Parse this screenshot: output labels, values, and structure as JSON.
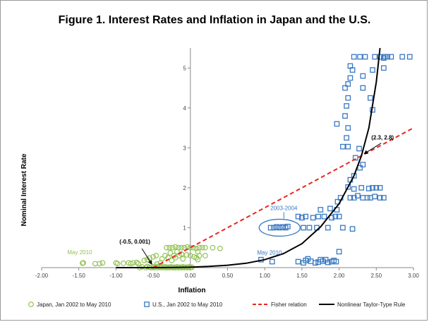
{
  "chart_data": {
    "type": "scatter",
    "title": "Figure 1.  Interest Rates and Inflation in Japan and the U.S.",
    "xlabel": "Inflation",
    "ylabel": "Nominal Interest Rate",
    "xlim": [
      -2.0,
      3.0
    ],
    "ylim": [
      0,
      5.5
    ],
    "x_ticks": [
      "-2.00",
      "-1.50",
      "-1.00",
      "-0.50",
      "0.00",
      "0.50",
      "1.00",
      "1.50",
      "2.00",
      "2.50",
      "3.00"
    ],
    "y_ticks": [
      "1",
      "2",
      "3",
      "4",
      "5"
    ],
    "grid": false,
    "legend_position": "bottom",
    "colors": {
      "japan": "#92c353",
      "us": "#3a78c2",
      "fisher": "#e8281e",
      "taylor": "#000000"
    },
    "series": [
      {
        "name": "Japan, Jan 2002 to May 2010",
        "marker": "circle",
        "points": [
          [
            -1.45,
            0.11
          ],
          [
            -1.44,
            0.12
          ],
          [
            -1.28,
            0.1
          ],
          [
            -1.22,
            0.1
          ],
          [
            -1.18,
            0.12
          ],
          [
            -1.0,
            0.12
          ],
          [
            -0.98,
            0.1
          ],
          [
            -0.9,
            0.11
          ],
          [
            -0.83,
            0.12
          ],
          [
            -0.8,
            0.1
          ],
          [
            -0.77,
            0.12
          ],
          [
            -0.72,
            0.13
          ],
          [
            -0.7,
            0.1
          ],
          [
            -0.68,
            0.0
          ],
          [
            -0.65,
            0.02
          ],
          [
            -0.6,
            0.0
          ],
          [
            -0.58,
            0.03
          ],
          [
            -0.55,
            0.01
          ],
          [
            -0.53,
            0.0
          ],
          [
            -0.5,
            0.02
          ],
          [
            -0.48,
            0.0
          ],
          [
            -0.46,
            0.03
          ],
          [
            -0.44,
            0.0
          ],
          [
            -0.42,
            0.02
          ],
          [
            -0.4,
            0.0
          ],
          [
            -0.38,
            0.02
          ],
          [
            -0.36,
            0.0
          ],
          [
            -0.34,
            0.02
          ],
          [
            -0.32,
            0.0
          ],
          [
            -0.3,
            0.01
          ],
          [
            -0.28,
            0.0
          ],
          [
            -0.26,
            0.02
          ],
          [
            -0.24,
            0.0
          ],
          [
            -0.22,
            0.01
          ],
          [
            -0.2,
            0.0
          ],
          [
            -0.18,
            0.02
          ],
          [
            -0.16,
            0.0
          ],
          [
            -0.14,
            0.01
          ],
          [
            -0.12,
            0.0
          ],
          [
            -0.1,
            0.02
          ],
          [
            -0.08,
            0.0
          ],
          [
            -0.06,
            0.01
          ],
          [
            -0.04,
            0.0
          ],
          [
            -0.02,
            0.02
          ],
          [
            0.0,
            0.0
          ],
          [
            0.02,
            0.01
          ],
          [
            -0.62,
            0.18
          ],
          [
            -0.58,
            0.2
          ],
          [
            -0.55,
            0.24
          ],
          [
            -0.5,
            0.27
          ],
          [
            -0.46,
            0.3
          ],
          [
            -0.45,
            0.09
          ],
          [
            -0.4,
            0.12
          ],
          [
            -0.38,
            0.22
          ],
          [
            -0.34,
            0.3
          ],
          [
            -0.3,
            0.25
          ],
          [
            -0.27,
            0.37
          ],
          [
            -0.25,
            0.18
          ],
          [
            -0.22,
            0.3
          ],
          [
            -0.2,
            0.25
          ],
          [
            -0.18,
            0.4
          ],
          [
            -0.15,
            0.3
          ],
          [
            -0.12,
            0.34
          ],
          [
            -0.1,
            0.22
          ],
          [
            -0.05,
            0.32
          ],
          [
            0.0,
            0.3
          ],
          [
            0.05,
            0.27
          ],
          [
            0.08,
            0.25
          ],
          [
            0.1,
            0.2
          ],
          [
            0.12,
            0.3
          ],
          [
            -0.32,
            0.5
          ],
          [
            -0.28,
            0.5
          ],
          [
            -0.24,
            0.5
          ],
          [
            -0.2,
            0.52
          ],
          [
            -0.16,
            0.5
          ],
          [
            -0.12,
            0.5
          ],
          [
            -0.08,
            0.5
          ],
          [
            -0.04,
            0.52
          ],
          [
            0.0,
            0.5
          ],
          [
            0.04,
            0.5
          ],
          [
            0.08,
            0.48
          ],
          [
            0.12,
            0.5
          ],
          [
            0.16,
            0.5
          ],
          [
            0.2,
            0.5
          ],
          [
            0.3,
            0.5
          ],
          [
            0.4,
            0.48
          ],
          [
            0.2,
            0.3
          ],
          [
            0.1,
            0.4
          ]
        ]
      },
      {
        "name": "U.S., Jan 2002 to May 2010",
        "marker": "square",
        "points": [
          [
            0.95,
            0.2
          ],
          [
            1.1,
            0.15
          ],
          [
            1.45,
            0.15
          ],
          [
            1.52,
            0.12
          ],
          [
            1.55,
            0.18
          ],
          [
            1.62,
            0.16
          ],
          [
            1.72,
            0.14
          ],
          [
            1.75,
            0.2
          ],
          [
            1.78,
            0.16
          ],
          [
            1.82,
            0.2
          ],
          [
            1.85,
            0.13
          ],
          [
            1.9,
            0.15
          ],
          [
            1.93,
            0.18
          ],
          [
            1.96,
            0.15
          ],
          [
            2.0,
            0.4
          ],
          [
            1.68,
            0.12
          ],
          [
            1.58,
            0.22
          ],
          [
            1.08,
            1.0
          ],
          [
            1.12,
            1.0
          ],
          [
            1.16,
            1.02
          ],
          [
            1.2,
            1.0
          ],
          [
            1.24,
            1.02
          ],
          [
            1.28,
            1.0
          ],
          [
            1.31,
            1.03
          ],
          [
            1.45,
            1.28
          ],
          [
            1.5,
            1.25
          ],
          [
            1.52,
            1.0
          ],
          [
            1.55,
            1.28
          ],
          [
            1.6,
            1.0
          ],
          [
            1.65,
            1.25
          ],
          [
            1.7,
            1.0
          ],
          [
            1.72,
            1.28
          ],
          [
            1.75,
            1.45
          ],
          [
            1.8,
            1.28
          ],
          [
            1.85,
            1.0
          ],
          [
            1.9,
            1.25
          ],
          [
            1.95,
            1.28
          ],
          [
            1.97,
            1.45
          ],
          [
            2.0,
            1.28
          ],
          [
            1.88,
            1.48
          ],
          [
            1.98,
            1.65
          ],
          [
            2.02,
            1.75
          ],
          [
            2.05,
            1.0
          ],
          [
            2.18,
            0.97
          ],
          [
            2.15,
            1.75
          ],
          [
            2.2,
            1.75
          ],
          [
            2.25,
            1.8
          ],
          [
            2.32,
            1.75
          ],
          [
            2.38,
            1.75
          ],
          [
            2.42,
            1.75
          ],
          [
            2.48,
            1.78
          ],
          [
            2.55,
            1.75
          ],
          [
            2.6,
            1.75
          ],
          [
            2.2,
            1.97
          ],
          [
            2.3,
            2.0
          ],
          [
            2.4,
            1.98
          ],
          [
            2.45,
            2.0
          ],
          [
            2.5,
            2.0
          ],
          [
            2.55,
            2.0
          ],
          [
            2.12,
            2.02
          ],
          [
            2.15,
            2.2
          ],
          [
            2.2,
            2.3
          ],
          [
            2.28,
            2.5
          ],
          [
            2.32,
            2.58
          ],
          [
            2.22,
            2.75
          ],
          [
            2.27,
            2.98
          ],
          [
            2.12,
            3.03
          ],
          [
            2.05,
            3.03
          ],
          [
            1.97,
            3.6
          ],
          [
            2.1,
            3.25
          ],
          [
            2.12,
            3.5
          ],
          [
            2.08,
            3.8
          ],
          [
            2.1,
            4.05
          ],
          [
            2.12,
            4.25
          ],
          [
            2.08,
            4.5
          ],
          [
            2.12,
            4.6
          ],
          [
            2.15,
            4.75
          ],
          [
            2.18,
            4.95
          ],
          [
            2.15,
            5.05
          ],
          [
            2.32,
            4.8
          ],
          [
            2.32,
            4.5
          ],
          [
            2.42,
            4.25
          ],
          [
            2.45,
            3.95
          ],
          [
            2.45,
            4.95
          ],
          [
            2.6,
            5.0
          ],
          [
            2.2,
            5.28
          ],
          [
            2.28,
            5.28
          ],
          [
            2.35,
            5.28
          ],
          [
            2.48,
            5.28
          ],
          [
            2.55,
            5.28
          ],
          [
            2.62,
            5.28
          ],
          [
            2.65,
            5.28
          ],
          [
            2.7,
            5.28
          ],
          [
            2.85,
            5.28
          ],
          [
            2.95,
            5.28
          ],
          [
            2.6,
            5.25
          ]
        ]
      },
      {
        "name": "Fisher relation",
        "line": "dashed",
        "points": [
          [
            -0.5,
            0.0
          ],
          [
            3.0,
            3.5
          ]
        ]
      },
      {
        "name": "Nonlinear Taylor-Type Rule",
        "line": "solid",
        "points": [
          [
            -1.0,
            0.0
          ],
          [
            -0.5,
            0.0
          ],
          [
            0.0,
            0.01
          ],
          [
            0.25,
            0.03
          ],
          [
            0.5,
            0.06
          ],
          [
            0.75,
            0.11
          ],
          [
            1.0,
            0.2
          ],
          [
            1.25,
            0.35
          ],
          [
            1.5,
            0.6
          ],
          [
            1.75,
            1.02
          ],
          [
            2.0,
            1.6
          ],
          [
            2.2,
            2.3
          ],
          [
            2.3,
            2.8
          ],
          [
            2.4,
            3.5
          ],
          [
            2.5,
            4.65
          ],
          [
            2.55,
            5.5
          ]
        ]
      }
    ],
    "annotations": [
      {
        "text": "(-0.5, 0.001)",
        "style": "black",
        "x": -0.5,
        "y": 0.0
      },
      {
        "text": "(2.3, 2.8)",
        "style": "black",
        "x": 2.3,
        "y": 2.8
      },
      {
        "text": "May 2010",
        "style": "green",
        "x": -1.45,
        "y": 0.11
      },
      {
        "text": "May 2010",
        "style": "blue",
        "x": 0.95,
        "y": 0.2
      },
      {
        "text": "2003-2004",
        "style": "blue",
        "x": 1.2,
        "y": 1.0
      }
    ]
  }
}
